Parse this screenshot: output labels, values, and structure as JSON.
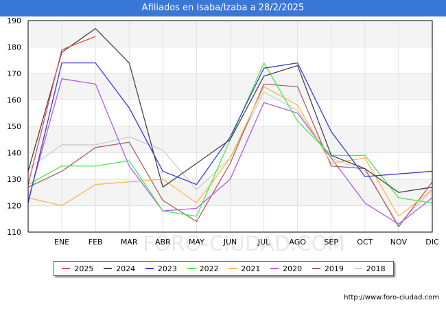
{
  "title": "Afiliados en Isaba/Izaba a 28/2/2025",
  "footer": "http://www.foro-ciudad.com",
  "watermark": "FORO-CIUDAD.COM",
  "chart_data": {
    "type": "line",
    "title": "Afiliados en Isaba/Izaba a 28/2/2025",
    "xlabel": "",
    "ylabel": "",
    "ylim": [
      110,
      190
    ],
    "yticks": [
      110,
      120,
      130,
      140,
      150,
      160,
      170,
      180,
      190
    ],
    "grid": true,
    "legend_position": "bottom",
    "categories": [
      "",
      "ENE",
      "FEB",
      "MAR",
      "ABR",
      "MAY",
      "JUN",
      "JUL",
      "AGO",
      "SEP",
      "OCT",
      "NOV",
      "DIC"
    ],
    "series": [
      {
        "name": "2025",
        "color": "#e84c4c",
        "values": [
          128,
          179,
          184,
          null,
          null,
          null,
          null,
          null,
          null,
          null,
          null,
          null,
          null
        ]
      },
      {
        "name": "2024",
        "color": "#444444",
        "values": [
          133,
          178,
          187,
          174,
          127,
          136,
          145,
          169,
          173,
          139,
          134,
          125,
          127
        ]
      },
      {
        "name": "2023",
        "color": "#3a3ad8",
        "values": [
          121,
          174,
          174,
          157,
          133,
          128,
          146,
          172,
          174,
          148,
          131,
          132,
          133
        ]
      },
      {
        "name": "2022",
        "color": "#4de84d",
        "values": [
          128,
          135,
          135,
          137,
          null,
          null,
          null,
          174,
          152,
          139,
          139,
          123,
          121
        ]
      },
      {
        "name": "2021",
        "color": "#f8b84a",
        "values": [
          123,
          120,
          128,
          129,
          130,
          121,
          138,
          165,
          158,
          136,
          138,
          116,
          126
        ]
      },
      {
        "name": "2020",
        "color": "#b05ce8",
        "values": [
          122,
          168,
          166,
          135,
          118,
          119,
          130,
          159,
          155,
          138,
          121,
          113,
          123
        ]
      },
      {
        "name": "2019",
        "color": "#a86060",
        "values": [
          127,
          133,
          142,
          144,
          122,
          114,
          136,
          166,
          165,
          135,
          134,
          112,
          129
        ]
      },
      {
        "name": "2018",
        "color": "#cccccc",
        "values": [
          134,
          143,
          143,
          146,
          141,
          126,
          138,
          163,
          156,
          138,
          133,
          113,
          126
        ]
      }
    ],
    "extra_2022_segment": {
      "from_index": 3,
      "to_index": 7,
      "values": [
        137,
        118,
        116,
        145,
        174
      ]
    }
  }
}
